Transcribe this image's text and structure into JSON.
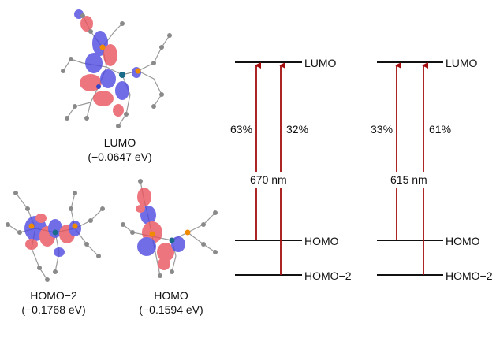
{
  "orbitals": {
    "lumo": {
      "name": "LUMO",
      "energy": "(−0.0647 eV)"
    },
    "homo_minus_2": {
      "name": "HOMO−2",
      "energy": "(−0.1768 eV)"
    },
    "homo": {
      "name": "HOMO",
      "energy": "(−0.1594 eV)"
    }
  },
  "diagrams": [
    {
      "levels": {
        "top": "LUMO",
        "middle": "HOMO",
        "bottom": "HOMO−2"
      },
      "contributions": {
        "left": "63%",
        "right": "32%"
      },
      "wavelength": "670 nm"
    },
    {
      "levels": {
        "top": "LUMO",
        "middle": "HOMO",
        "bottom": "HOMO−2"
      },
      "contributions": {
        "left": "33%",
        "right": "61%"
      },
      "wavelength": "615 nm"
    }
  ],
  "colors": {
    "arrow": "#a30d0d",
    "level_line": "#111111",
    "lobe_positive": "#e8505b",
    "lobe_negative": "#4a45e0",
    "atom_carbon": "#8a8a8a",
    "atom_phosphorus": "#f08a00",
    "atom_nitrogen": "#3344cc",
    "atom_metal": "#1a6a8a"
  }
}
